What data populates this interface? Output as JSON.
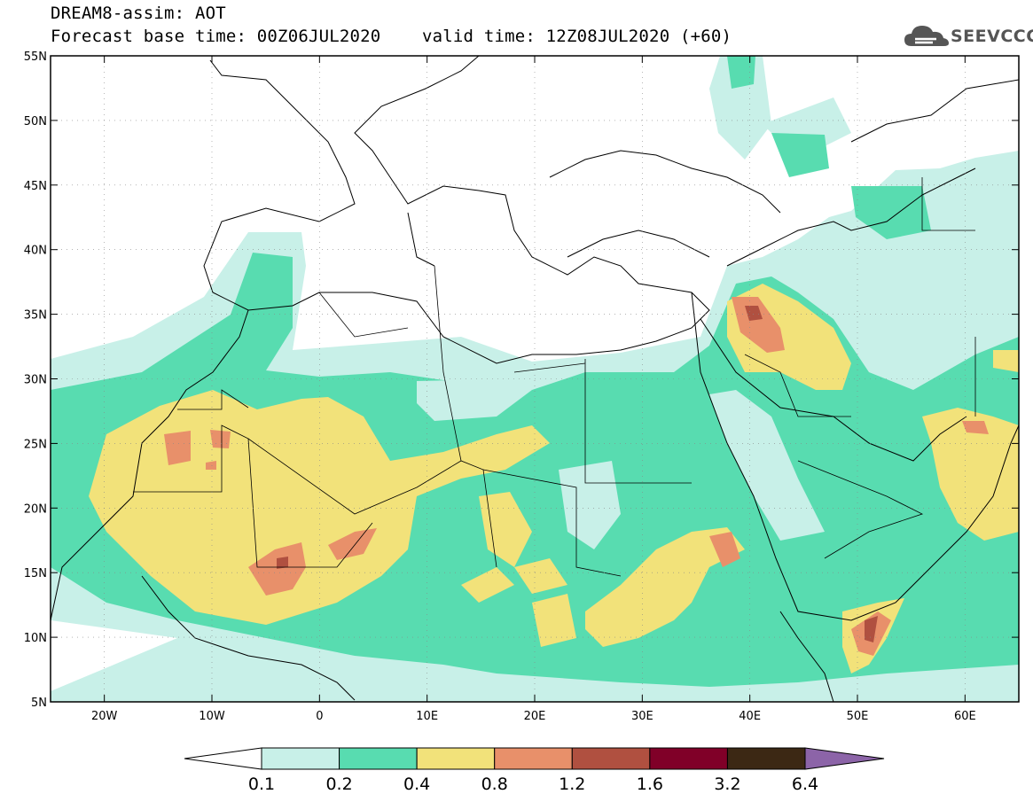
{
  "header": {
    "title": "DREAM8-assim: AOT",
    "subtitle": "Forecast base time: 00Z06JUL2020    valid time: 12Z08JUL2020 (+60)",
    "logo_text": "SEEVCCC"
  },
  "map": {
    "lat_labels": [
      "55N",
      "50N",
      "45N",
      "40N",
      "35N",
      "30N",
      "25N",
      "20N",
      "15N",
      "10N",
      "5N"
    ],
    "lon_labels": [
      "20W",
      "10W",
      "0",
      "10E",
      "20E",
      "30E",
      "40E",
      "50E",
      "60E"
    ],
    "lon_range": [
      -25,
      65
    ],
    "lat_range": [
      5,
      55
    ]
  },
  "colorbar": {
    "labels": [
      "0.1",
      "0.2",
      "0.4",
      "0.8",
      "1.2",
      "1.6",
      "3.2",
      "6.4"
    ],
    "colors": [
      "#ffffff",
      "#c8f0e8",
      "#58dcb0",
      "#f2e27a",
      "#e8906a",
      "#b05040",
      "#800028",
      "#3c2814",
      "#8c64a8"
    ]
  },
  "colors": {
    "c1": "#c8f0e8",
    "c2": "#58dcb0",
    "c3": "#f2e27a",
    "c4": "#e8906a",
    "c5": "#b05040",
    "c6": "#800028"
  }
}
